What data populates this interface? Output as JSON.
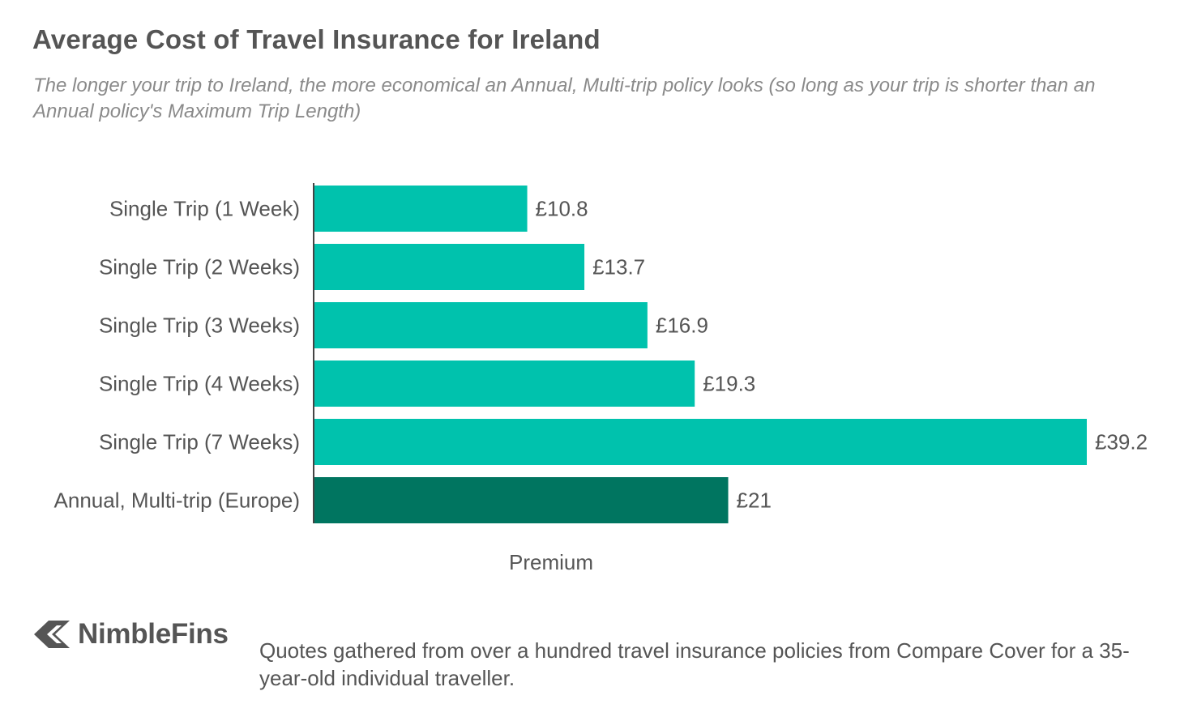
{
  "chart_data": {
    "type": "bar",
    "orientation": "horizontal",
    "title": "Average Cost of Travel Insurance for Ireland",
    "subtitle": "The longer your trip to Ireland, the more economical an Annual, Multi-trip policy looks (so long as your trip is shorter than an Annual policy's Maximum Trip Length)",
    "xlabel": "Premium",
    "ylabel": "",
    "categories": [
      "Single Trip (1 Week)",
      "Single Trip (2 Weeks)",
      "Single Trip (3 Weeks)",
      "Single Trip (4 Weeks)",
      "Single Trip (7 Weeks)",
      "Annual, Multi-trip (Europe)"
    ],
    "values": [
      10.8,
      13.7,
      16.9,
      19.3,
      39.2,
      21
    ],
    "value_labels": [
      "£10.8",
      "£13.7",
      "£16.9",
      "£19.3",
      "£39.2",
      "£21"
    ],
    "bar_colors": [
      "#00c2ad",
      "#00c2ad",
      "#00c2ad",
      "#00c2ad",
      "#00c2ad",
      "#007560"
    ],
    "xlim": [
      0,
      39.2
    ],
    "grid": false,
    "legend": "none"
  },
  "brand": {
    "name": "NimbleFins",
    "icon": "nimblefins-logo-icon"
  },
  "footnote": "Quotes gathered from over a hundred travel insurance policies from Compare Cover for a 35-year-old individual traveller.",
  "colors": {
    "text": "#555555",
    "subtitle": "#8a8a8a",
    "single_trip": "#00c2ad",
    "annual": "#007560",
    "axis": "#444444"
  }
}
